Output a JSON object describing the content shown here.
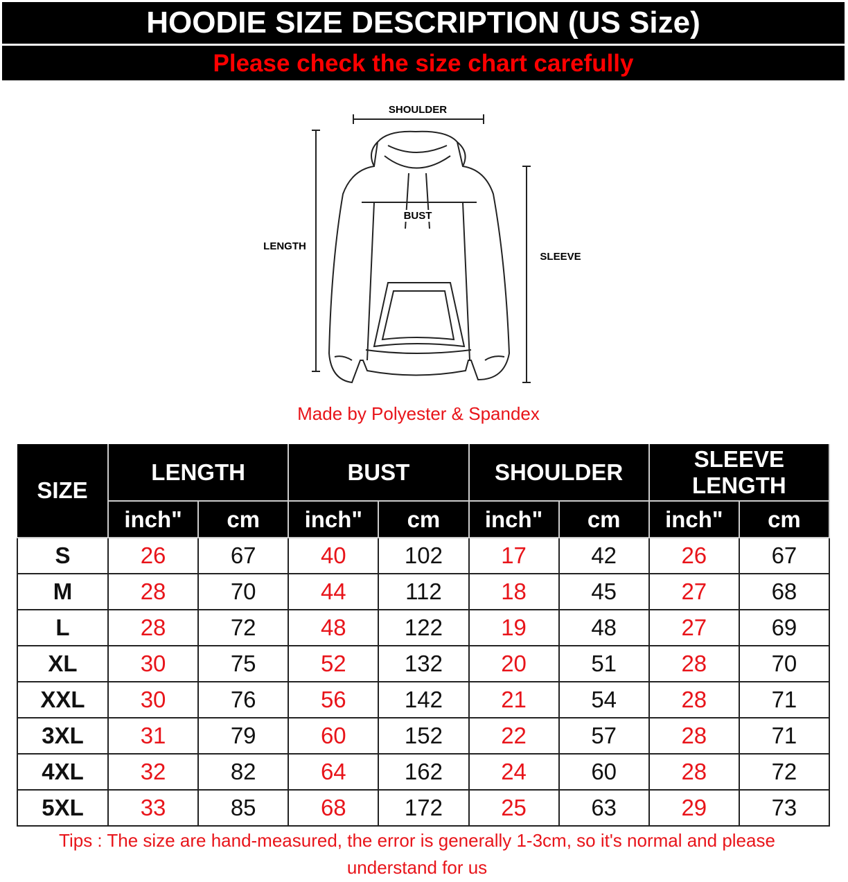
{
  "header": {
    "title": "HOODIE SIZE DESCRIPTION (US Size)",
    "subtitle": "Please check the size chart carefully"
  },
  "diagram": {
    "shoulder": "SHOULDER",
    "length": "LENGTH",
    "bust": "BUST",
    "sleeve": "SLEEVE"
  },
  "material": "Made by Polyester & Spandex",
  "table": {
    "size_header": "SIZE",
    "groups": [
      "LENGTH",
      "BUST",
      "SHOULDER",
      "SLEEVE LENGTH"
    ],
    "unit_inch": "inch\"",
    "unit_cm": "cm",
    "rows": [
      [
        "S",
        "26",
        "67",
        "40",
        "102",
        "17",
        "42",
        "26",
        "67"
      ],
      [
        "M",
        "28",
        "70",
        "44",
        "112",
        "18",
        "45",
        "27",
        "68"
      ],
      [
        "L",
        "28",
        "72",
        "48",
        "122",
        "19",
        "48",
        "27",
        "69"
      ],
      [
        "XL",
        "30",
        "75",
        "52",
        "132",
        "20",
        "51",
        "28",
        "70"
      ],
      [
        "XXL",
        "30",
        "76",
        "56",
        "142",
        "21",
        "54",
        "28",
        "71"
      ],
      [
        "3XL",
        "31",
        "79",
        "60",
        "152",
        "22",
        "57",
        "28",
        "71"
      ],
      [
        "4XL",
        "32",
        "82",
        "64",
        "162",
        "24",
        "60",
        "28",
        "72"
      ],
      [
        "5XL",
        "33",
        "85",
        "68",
        "172",
        "25",
        "63",
        "29",
        "73"
      ]
    ]
  },
  "tips": "Tips : The size are hand-measured, the error is generally 1-3cm, so it's normal and please understand for us",
  "colors": {
    "accent_red": "#e8141a",
    "header_bg": "#000000"
  }
}
